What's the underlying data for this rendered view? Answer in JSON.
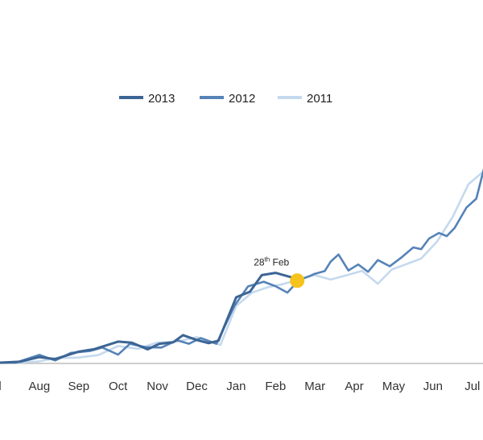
{
  "chart_data": {
    "type": "line",
    "categories": [
      "Jul",
      "Aug",
      "Sep",
      "Oct",
      "Nov",
      "Dec",
      "Jan",
      "Feb",
      "Mar",
      "Apr",
      "May",
      "Jun",
      "Jul"
    ],
    "first_tick_visible": "l",
    "legend_position": "top",
    "grid": false,
    "ylim": [
      0,
      100
    ],
    "series": [
      {
        "name": "2013",
        "color": "#3c6594",
        "points": [
          [
            0,
            0
          ],
          [
            0.5,
            0.4
          ],
          [
            1,
            2.5
          ],
          [
            1.4,
            1.6
          ],
          [
            2,
            5
          ],
          [
            2.4,
            6.1
          ],
          [
            3,
            9.5
          ],
          [
            3.35,
            9
          ],
          [
            3.75,
            6
          ],
          [
            4.05,
            8.5
          ],
          [
            4.4,
            9.2
          ],
          [
            4.65,
            12.4
          ],
          [
            5,
            10.2
          ],
          [
            5.3,
            8.8
          ],
          [
            5.55,
            9.9
          ],
          [
            6,
            29.5
          ],
          [
            6.35,
            32
          ],
          [
            6.65,
            39.5
          ],
          [
            7,
            40.5
          ],
          [
            7.4,
            38.5
          ],
          [
            7.55,
            37
          ]
        ]
      },
      {
        "name": "2012",
        "color": "#5683b8",
        "points": [
          [
            0,
            0
          ],
          [
            0.4,
            0
          ],
          [
            1,
            3.5
          ],
          [
            1.4,
            1
          ],
          [
            1.8,
            4.4
          ],
          [
            2.3,
            5.3
          ],
          [
            2.6,
            6.8
          ],
          [
            3,
            3.6
          ],
          [
            3.3,
            8.5
          ],
          [
            3.7,
            7
          ],
          [
            4.1,
            6.8
          ],
          [
            4.5,
            10.1
          ],
          [
            4.8,
            8.5
          ],
          [
            5.1,
            11.1
          ],
          [
            5.5,
            8.5
          ],
          [
            5.95,
            25.5
          ],
          [
            6.3,
            34.4
          ],
          [
            6.7,
            36.5
          ],
          [
            7,
            34.5
          ],
          [
            7.3,
            31.6
          ],
          [
            7.6,
            37.3
          ],
          [
            7.85,
            39
          ],
          [
            8,
            40.1
          ],
          [
            8.25,
            41.3
          ],
          [
            8.4,
            45.6
          ],
          [
            8.6,
            48.8
          ],
          [
            8.85,
            41.6
          ],
          [
            9.1,
            44.3
          ],
          [
            9.35,
            41
          ],
          [
            9.6,
            46.3
          ],
          [
            9.9,
            43.5
          ],
          [
            10.2,
            47.5
          ],
          [
            10.5,
            52
          ],
          [
            10.7,
            51.2
          ],
          [
            10.9,
            56
          ],
          [
            11.15,
            58.5
          ],
          [
            11.35,
            57.1
          ],
          [
            11.55,
            60.8
          ],
          [
            11.85,
            70
          ],
          [
            12.1,
            74
          ],
          [
            12.35,
            91.5
          ],
          [
            12.65,
            76
          ],
          [
            12.9,
            64
          ]
        ]
      },
      {
        "name": "2011",
        "color": "#c5d9ee",
        "points": [
          [
            0,
            0
          ],
          [
            0.5,
            0
          ],
          [
            1,
            0.6
          ],
          [
            1.4,
            2
          ],
          [
            2,
            2.3
          ],
          [
            2.5,
            3.4
          ],
          [
            3,
            7.5
          ],
          [
            3.5,
            6.2
          ],
          [
            4,
            9.1
          ],
          [
            4.5,
            9.5
          ],
          [
            5,
            11.5
          ],
          [
            5.6,
            8
          ],
          [
            6,
            25.6
          ],
          [
            6.4,
            31.6
          ],
          [
            6.8,
            34
          ],
          [
            7.2,
            35.5
          ],
          [
            7.6,
            37.5
          ],
          [
            8,
            39.5
          ],
          [
            8.4,
            37.5
          ],
          [
            8.8,
            39.4
          ],
          [
            9.2,
            41.4
          ],
          [
            9.6,
            35.6
          ],
          [
            9.95,
            42
          ],
          [
            10.3,
            44.3
          ],
          [
            10.7,
            47
          ],
          [
            11.1,
            54.6
          ],
          [
            11.5,
            65.8
          ],
          [
            11.9,
            80.5
          ],
          [
            12.25,
            85.8
          ],
          [
            12.55,
            82
          ],
          [
            12.9,
            66
          ]
        ]
      }
    ],
    "annotation": {
      "text_main": "28",
      "text_sup": "th",
      "text_after": " Feb",
      "x": 7.55,
      "y": 37,
      "marker_color": "#f6c21c"
    }
  }
}
